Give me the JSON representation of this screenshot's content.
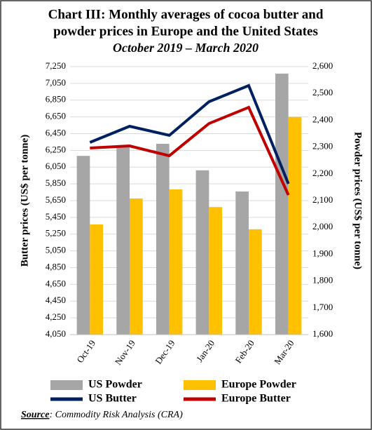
{
  "chart_data": {
    "type": "combo",
    "title_lines": [
      "Chart III: Monthly averages of cocoa butter and",
      "powder prices in Europe and the United States"
    ],
    "subtitle": "October 2019 – March 2020",
    "y_label": "Butter prices (US$ per tonne)",
    "y2_label": "Powder prices (US$ per tonne)",
    "categories": [
      "Oct-19",
      "Nov-19",
      "Dec-19",
      "Jan-20",
      "Feb-20",
      "Mar-20"
    ],
    "series": [
      {
        "name": "US Powder",
        "type": "bar",
        "axis": "y2",
        "color": "#a6a6a6",
        "values": [
          2267,
          2299,
          2312,
          2213,
          2134,
          2574
        ]
      },
      {
        "name": "Europe Powder",
        "type": "bar",
        "axis": "y2",
        "color": "#ffc000",
        "values": [
          2011,
          2108,
          2142,
          2076,
          1993,
          2412
        ]
      },
      {
        "name": "US Butter",
        "type": "line",
        "axis": "y",
        "color": "#002060",
        "values": [
          6345,
          6538,
          6429,
          6831,
          7024,
          5851
        ]
      },
      {
        "name": "Europe Butter",
        "type": "line",
        "axis": "y",
        "color": "#c00000",
        "values": [
          6278,
          6303,
          6186,
          6571,
          6764,
          5717
        ]
      }
    ],
    "ylim": [
      4050,
      7250
    ],
    "yticks": [
      {
        "value": 4050,
        "label": "4,050"
      },
      {
        "value": 4250,
        "label": "4,250"
      },
      {
        "value": 4450,
        "label": "4,450"
      },
      {
        "value": 4650,
        "label": "4,650"
      },
      {
        "value": 4850,
        "label": "4,850"
      },
      {
        "value": 5050,
        "label": "5,050"
      },
      {
        "value": 5250,
        "label": "5,250"
      },
      {
        "value": 5450,
        "label": "5,450"
      },
      {
        "value": 5650,
        "label": "5,650"
      },
      {
        "value": 5850,
        "label": "5,850"
      },
      {
        "value": 6050,
        "label": "6,050"
      },
      {
        "value": 6250,
        "label": "6,250"
      },
      {
        "value": 6450,
        "label": "6,450"
      },
      {
        "value": 6650,
        "label": "6,650"
      },
      {
        "value": 6850,
        "label": "6,850"
      },
      {
        "value": 7050,
        "label": "7,050"
      },
      {
        "value": 7250,
        "label": "7,250"
      }
    ],
    "y2lim": [
      1600,
      2600
    ],
    "y2ticks": [
      {
        "value": 1600,
        "label": "1,600"
      },
      {
        "value": 1700,
        "label": "1,700"
      },
      {
        "value": 1800,
        "label": "1,800"
      },
      {
        "value": 1900,
        "label": "1,900"
      },
      {
        "value": 2000,
        "label": "2,000"
      },
      {
        "value": 2100,
        "label": "2,100"
      },
      {
        "value": 2200,
        "label": "2,200"
      },
      {
        "value": 2300,
        "label": "2,300"
      },
      {
        "value": 2400,
        "label": "2,400"
      },
      {
        "value": 2500,
        "label": "2,500"
      },
      {
        "value": 2600,
        "label": "2,600"
      }
    ],
    "grid": true,
    "source_label": "Source",
    "source_text": ": Commodity Risk Analysis (CRA)"
  }
}
